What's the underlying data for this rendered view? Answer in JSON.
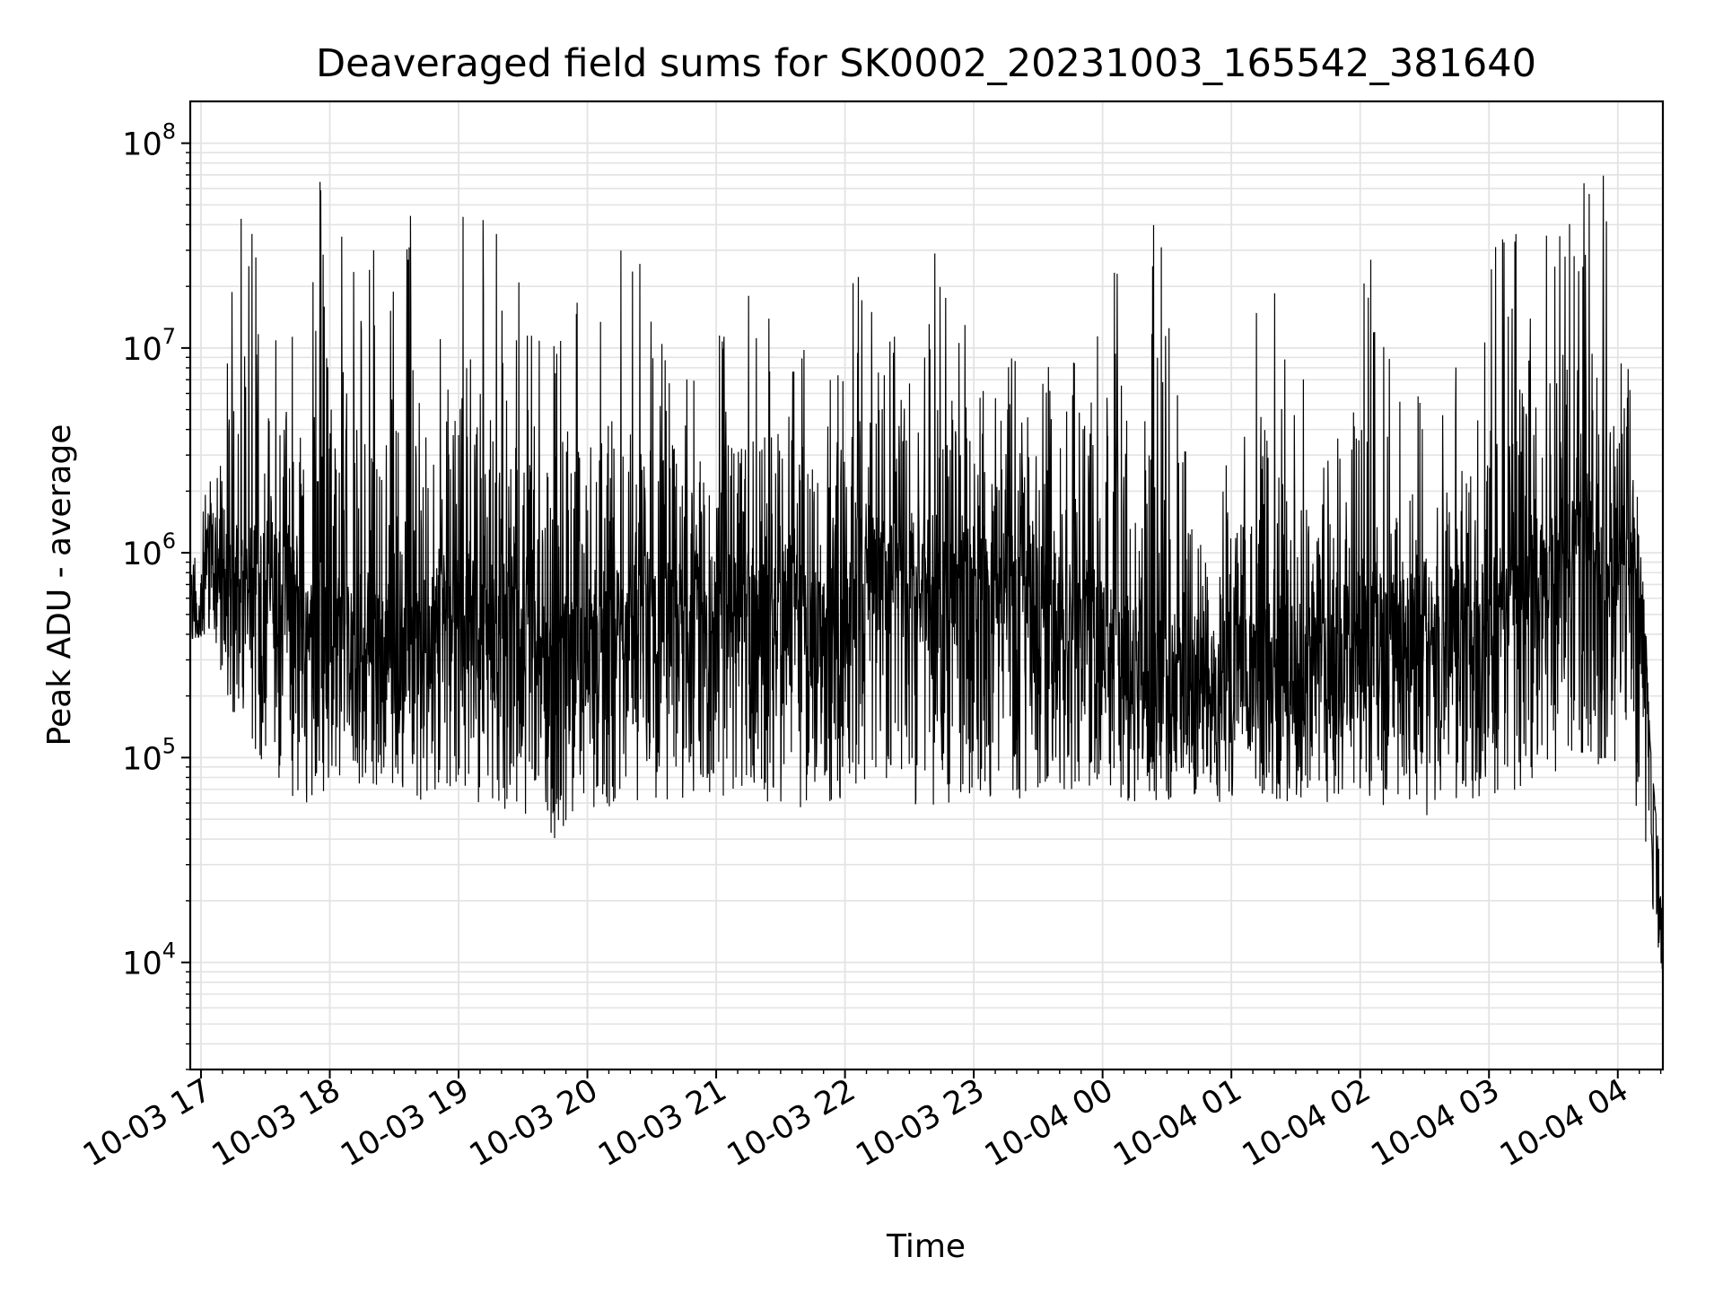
{
  "chart_data": {
    "type": "line",
    "title": "Deaveraged field sums for SK0002_20231003_165542_381640",
    "xlabel": "Time",
    "ylabel": "Peak ADU - average",
    "yscale": "log",
    "ylim": [
      3000,
      160000000
    ],
    "xlim": [
      "2023-10-03 16:55",
      "2023-10-04 04:21"
    ],
    "grid": true,
    "line_color": "#000000",
    "grid_color": "#e3e3e3",
    "x_ticks": [
      {
        "time": "2023-10-03 17:00",
        "label": "10-03 17"
      },
      {
        "time": "2023-10-03 18:00",
        "label": "10-03 18"
      },
      {
        "time": "2023-10-03 19:00",
        "label": "10-03 19"
      },
      {
        "time": "2023-10-03 20:00",
        "label": "10-03 20"
      },
      {
        "time": "2023-10-03 21:00",
        "label": "10-03 21"
      },
      {
        "time": "2023-10-03 22:00",
        "label": "10-03 22"
      },
      {
        "time": "2023-10-03 23:00",
        "label": "10-03 23"
      },
      {
        "time": "2023-10-04 00:00",
        "label": "10-04 00"
      },
      {
        "time": "2023-10-04 01:00",
        "label": "10-04 01"
      },
      {
        "time": "2023-10-04 02:00",
        "label": "10-04 02"
      },
      {
        "time": "2023-10-04 03:00",
        "label": "10-04 03"
      },
      {
        "time": "2023-10-04 04:00",
        "label": "10-04 04"
      }
    ],
    "y_ticks": [
      {
        "value": 10000,
        "base": "10",
        "exp": "4"
      },
      {
        "value": 100000,
        "base": "10",
        "exp": "5"
      },
      {
        "value": 1000000,
        "base": "10",
        "exp": "6"
      },
      {
        "value": 10000000,
        "base": "10",
        "exp": "7"
      },
      {
        "value": 100000000,
        "base": "10",
        "exp": "8"
      }
    ],
    "series": [
      {
        "x": [
          "2023-10-03 16:55",
          "2023-10-03 17:05",
          "2023-10-03 17:15",
          "2023-10-03 17:25",
          "2023-10-03 17:35",
          "2023-10-03 17:45",
          "2023-10-03 17:55",
          "2023-10-03 18:05",
          "2023-10-03 18:15",
          "2023-10-03 18:25",
          "2023-10-03 18:35",
          "2023-10-03 18:45",
          "2023-10-03 18:55",
          "2023-10-03 19:05",
          "2023-10-03 19:15",
          "2023-10-03 19:25",
          "2023-10-03 19:35",
          "2023-10-03 19:45",
          "2023-10-03 19:55",
          "2023-10-03 20:05",
          "2023-10-03 20:15",
          "2023-10-03 20:25",
          "2023-10-03 20:35",
          "2023-10-03 20:45",
          "2023-10-03 20:55",
          "2023-10-03 21:05",
          "2023-10-03 21:15",
          "2023-10-03 21:25",
          "2023-10-03 21:35",
          "2023-10-03 21:45",
          "2023-10-03 21:55",
          "2023-10-03 22:05",
          "2023-10-03 22:15",
          "2023-10-03 22:25",
          "2023-10-03 22:35",
          "2023-10-03 22:45",
          "2023-10-03 22:55",
          "2023-10-03 23:05",
          "2023-10-03 23:15",
          "2023-10-03 23:25",
          "2023-10-03 23:35",
          "2023-10-03 23:45",
          "2023-10-03 23:55",
          "2023-10-04 00:05",
          "2023-10-04 00:15",
          "2023-10-04 00:25",
          "2023-10-04 00:35",
          "2023-10-04 00:45",
          "2023-10-04 00:55",
          "2023-10-04 01:05",
          "2023-10-04 01:15",
          "2023-10-04 01:25",
          "2023-10-04 01:35",
          "2023-10-04 01:45",
          "2023-10-04 01:55",
          "2023-10-04 02:05",
          "2023-10-04 02:15",
          "2023-10-04 02:25",
          "2023-10-04 02:35",
          "2023-10-04 02:45",
          "2023-10-04 02:55",
          "2023-10-04 03:05",
          "2023-10-04 03:15",
          "2023-10-04 03:25",
          "2023-10-04 03:35",
          "2023-10-04 03:45",
          "2023-10-04 03:55",
          "2023-10-04 04:05",
          "2023-10-04 04:10",
          "2023-10-04 04:15",
          "2023-10-04 04:21"
        ],
        "median": [
          500000,
          900000,
          600000,
          700000,
          800000,
          500000,
          400000,
          400000,
          300000,
          350000,
          300000,
          400000,
          600000,
          500000,
          400000,
          450000,
          350000,
          250000,
          300000,
          400000,
          500000,
          550000,
          500000,
          450000,
          500000,
          500000,
          450000,
          500000,
          550000,
          400000,
          450000,
          600000,
          800000,
          700000,
          600000,
          650000,
          700000,
          750000,
          700000,
          600000,
          550000,
          500000,
          450000,
          350000,
          300000,
          250000,
          220000,
          200000,
          220000,
          250000,
          280000,
          300000,
          280000,
          300000,
          320000,
          350000,
          380000,
          400000,
          380000,
          400000,
          450000,
          500000,
          600000,
          700000,
          900000,
          1000000,
          900000,
          800000,
          600000,
          200000,
          9000
        ],
        "min": [
          380000,
          400000,
          150000,
          100000,
          80000,
          60000,
          55000,
          60000,
          70000,
          60000,
          55000,
          60000,
          65000,
          60000,
          55000,
          50000,
          55000,
          40000,
          55000,
          55000,
          60000,
          60000,
          60000,
          55000,
          60000,
          60000,
          65000,
          60000,
          55000,
          60000,
          60000,
          55000,
          60000,
          55000,
          60000,
          55000,
          55000,
          60000,
          60000,
          65000,
          70000,
          70000,
          70000,
          65000,
          60000,
          60000,
          60000,
          65000,
          60000,
          60000,
          65000,
          60000,
          60000,
          60000,
          65000,
          60000,
          55000,
          50000,
          50000,
          55000,
          60000,
          65000,
          70000,
          80000,
          85000,
          90000,
          90000,
          100000,
          40000,
          20000,
          6000
        ],
        "max": [
          700000,
          3800000,
          40000000,
          50000000,
          30000000,
          50000000,
          80000000,
          60000000,
          30000000,
          40000000,
          50000000,
          50000000,
          40000000,
          100000000,
          40000000,
          30000000,
          20000000,
          30000000,
          25000000,
          20000000,
          40000000,
          30000000,
          15000000,
          20000000,
          10000000,
          15000000,
          20000000,
          25000000,
          30000000,
          10000000,
          12000000,
          30000000,
          15000000,
          20000000,
          10000000,
          60000000,
          15000000,
          12000000,
          10000000,
          12000000,
          8000000,
          9000000,
          7000000,
          60000000,
          8000000,
          50000000,
          10000000,
          5000000,
          3000000,
          3000000,
          40000000,
          10000000,
          8000000,
          5000000,
          8000000,
          40000000,
          10000000,
          8000000,
          6000000,
          10000000,
          15000000,
          40000000,
          50000000,
          70000000,
          60000000,
          80000000,
          70000000,
          10000000,
          3000000,
          120000,
          20000
        ]
      }
    ]
  }
}
